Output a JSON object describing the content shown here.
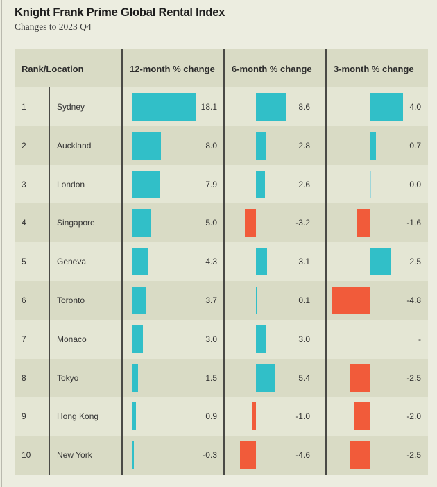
{
  "colors": {
    "positive": "#31bfc8",
    "negative": "#f15b3a"
  },
  "header": {
    "title": "Knight Frank Prime Global Rental Index",
    "subtitle": "Changes to 2023 Q4"
  },
  "columns": [
    "Rank/Location",
    "12-month % change",
    "6-month % change",
    "3-month % change"
  ],
  "chart_data": {
    "type": "table",
    "title": "Knight Frank Prime Global Rental Index",
    "subtitle": "Changes to 2023 Q4",
    "columns": [
      "Rank",
      "Location",
      "12-month % change",
      "6-month % change",
      "3-month % change"
    ],
    "rows": [
      {
        "rank": "1",
        "location": "Sydney",
        "m12": 18.1,
        "m12_label": "18.1",
        "m6": 8.6,
        "m6_label": "8.6",
        "m3": 4.0,
        "m3_label": "4.0"
      },
      {
        "rank": "2",
        "location": "Auckland",
        "m12": 8.0,
        "m12_label": "8.0",
        "m6": 2.8,
        "m6_label": "2.8",
        "m3": 0.7,
        "m3_label": "0.7"
      },
      {
        "rank": "3",
        "location": "London",
        "m12": 7.9,
        "m12_label": "7.9",
        "m6": 2.6,
        "m6_label": "2.6",
        "m3": 0.0,
        "m3_label": "0.0"
      },
      {
        "rank": "4",
        "location": "Singapore",
        "m12": 5.0,
        "m12_label": "5.0",
        "m6": -3.2,
        "m6_label": "-3.2",
        "m3": -1.6,
        "m3_label": "-1.6"
      },
      {
        "rank": "5",
        "location": "Geneva",
        "m12": 4.3,
        "m12_label": "4.3",
        "m6": 3.1,
        "m6_label": "3.1",
        "m3": 2.5,
        "m3_label": "2.5"
      },
      {
        "rank": "6",
        "location": "Toronto",
        "m12": 3.7,
        "m12_label": "3.7",
        "m6": 0.1,
        "m6_label": "0.1",
        "m3": -4.8,
        "m3_label": "-4.8"
      },
      {
        "rank": "7",
        "location": "Monaco",
        "m12": 3.0,
        "m12_label": "3.0",
        "m6": 3.0,
        "m6_label": "3.0",
        "m3": null,
        "m3_label": "-"
      },
      {
        "rank": "8",
        "location": "Tokyo",
        "m12": 1.5,
        "m12_label": "1.5",
        "m6": 5.4,
        "m6_label": "5.4",
        "m3": -2.5,
        "m3_label": "-2.5"
      },
      {
        "rank": "9",
        "location": "Hong Kong",
        "m12": 0.9,
        "m12_label": "0.9",
        "m6": -1.0,
        "m6_label": "-1.0",
        "m3": -2.0,
        "m3_label": "-2.0"
      },
      {
        "rank": "10",
        "location": "New York",
        "m12": -0.3,
        "m12_label": "-0.3",
        "m6": -4.6,
        "m6_label": "-4.6",
        "m3": -2.5,
        "m3_label": "-2.5"
      }
    ]
  }
}
